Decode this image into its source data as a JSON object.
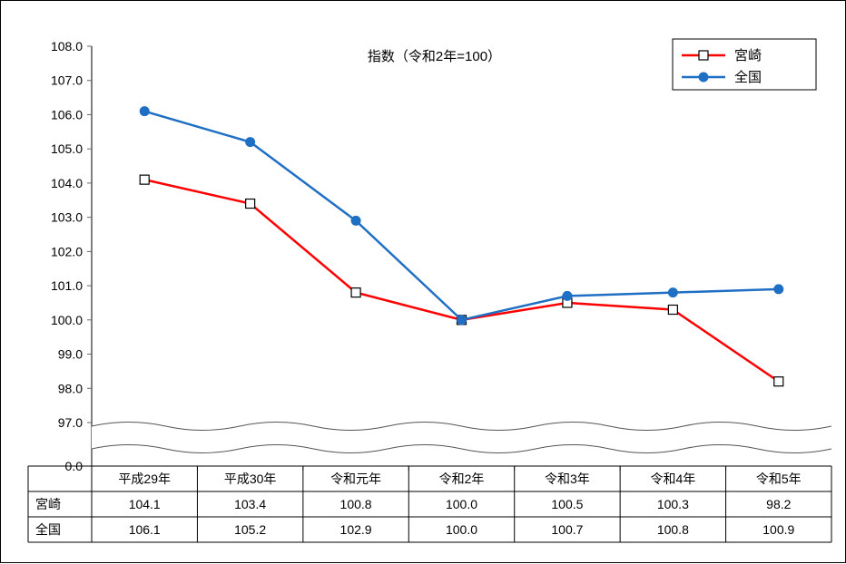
{
  "chart": {
    "type": "line",
    "title": "指数（令和2年=100）",
    "title_fontsize": 15,
    "title_color": "#000000",
    "background_color": "#ffffff",
    "categories": [
      "平成29年",
      "平成30年",
      "令和元年",
      "令和2年",
      "令和3年",
      "令和4年",
      "令和5年"
    ],
    "series": [
      {
        "name": "宮崎",
        "values": [
          104.1,
          103.4,
          100.8,
          100.0,
          100.5,
          100.3,
          98.2
        ],
        "color": "#ff0000",
        "marker": "square-open",
        "marker_fill": "#ffffff",
        "marker_stroke": "#000000",
        "marker_size": 10,
        "line_width": 2.5
      },
      {
        "name": "全国",
        "values": [
          106.1,
          105.2,
          102.9,
          100.0,
          100.7,
          100.8,
          100.9
        ],
        "color": "#1f6fc4",
        "marker": "circle",
        "marker_fill": "#1f6fc4",
        "marker_stroke": "#1f6fc4",
        "marker_size": 10,
        "line_width": 2.5
      }
    ],
    "y_axis": {
      "broken": true,
      "ticks": [
        0.0,
        97.0,
        98.0,
        99.0,
        100.0,
        101.0,
        102.0,
        103.0,
        104.0,
        105.0,
        106.0,
        107.0,
        108.0
      ],
      "tick_labels": [
        "0.0",
        "97.0",
        "98.0",
        "99.0",
        "100.0",
        "101.0",
        "102.0",
        "103.0",
        "104.0",
        "105.0",
        "106.0",
        "107.0",
        "108.0"
      ],
      "fontsize": 14,
      "color": "#000000"
    },
    "x_axis": {
      "fontsize": 14,
      "color": "#000000"
    },
    "legend": {
      "position": "top-right",
      "fontsize": 15,
      "border_color": "#000000"
    },
    "table": {
      "row_labels": [
        "宮崎",
        "全国"
      ],
      "fontsize": 14
    },
    "axis_color": "#000000",
    "tick_color": "#666666"
  }
}
